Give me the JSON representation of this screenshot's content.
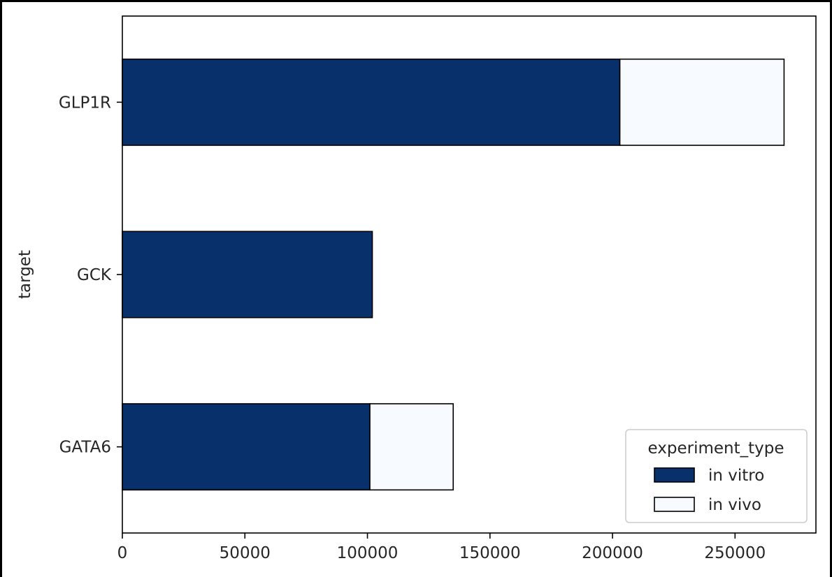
{
  "chart_data": {
    "type": "bar",
    "orientation": "horizontal",
    "stacked": true,
    "title": "",
    "xlabel": "",
    "ylabel": "target",
    "categories": [
      "GATA6",
      "GCK",
      "GLP1R"
    ],
    "series": [
      {
        "name": "in vitro",
        "values": [
          101000,
          102000,
          203000
        ],
        "color": "#08306b"
      },
      {
        "name": "in vivo",
        "values": [
          34000,
          0,
          67000
        ],
        "color": "#f7fbff"
      }
    ],
    "xlim": [
      0,
      283000
    ],
    "xticks": [
      0,
      50000,
      100000,
      150000,
      200000,
      250000
    ],
    "grid": false,
    "legend": {
      "title": "experiment_type",
      "placement": "lower-right"
    }
  }
}
